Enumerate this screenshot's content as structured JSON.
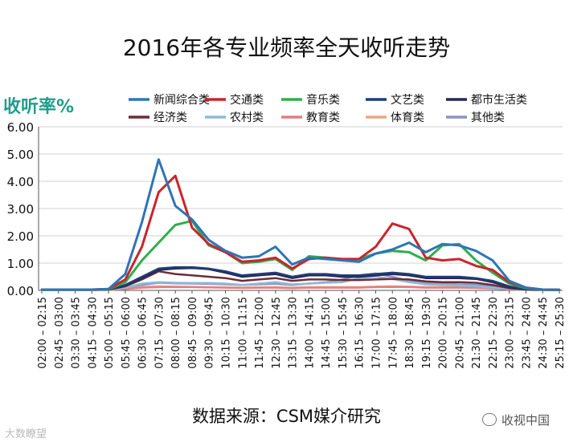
{
  "page": {
    "title": "2016年各专业频率全天收听走势",
    "source": "数据来源：CSM媒介研究",
    "watermark_left": "大数瞭望",
    "watermark_right": "收视中国"
  },
  "chart_data": {
    "type": "line",
    "ylabel": "收听率%",
    "ylim": [
      0,
      6
    ],
    "yticks": [
      "0.00",
      "1.00",
      "2.00",
      "3.00",
      "4.00",
      "5.00",
      "6.00"
    ],
    "x": [
      "02:00 – 02:15",
      "02:45 – 03:00",
      "03:30 – 03:45",
      "04:15 – 04:30",
      "05:00 – 05:15",
      "05:45 – 06:00",
      "06:30 – 06:45",
      "07:15 – 07:30",
      "08:00 – 08:15",
      "08:45 – 09:00",
      "09:30 – 09:45",
      "10:15 – 10:30",
      "11:00 – 11:15",
      "11:45 – 12:00",
      "12:30 – 12:45",
      "13:15 – 13:30",
      "14:00 – 14:15",
      "14:45 – 15:00",
      "15:30 – 15:45",
      "16:15 – 16:30",
      "17:00 – 17:15",
      "17:45 – 18:00",
      "18:30 – 18:45",
      "19:15 – 19:30",
      "20:00 – 20:15",
      "20:45 – 21:00",
      "21:30 – 21:45",
      "22:15 – 22:30",
      "23:00 – 23:15",
      "23:45 – 24:00",
      "24:30 – 24:45",
      "25:15 – 25:30"
    ],
    "legend_position": "top",
    "series": [
      {
        "name": "新闻综合类",
        "color": "#2e75b6",
        "width": 3,
        "values": [
          0.03,
          0.03,
          0.03,
          0.03,
          0.05,
          0.6,
          2.5,
          4.8,
          3.1,
          2.6,
          1.85,
          1.45,
          1.2,
          1.25,
          1.6,
          0.95,
          1.2,
          1.15,
          1.1,
          1.05,
          1.35,
          1.5,
          1.75,
          1.4,
          1.7,
          1.65,
          1.45,
          1.1,
          0.35,
          0.1,
          0.03,
          0.02
        ]
      },
      {
        "name": "交通类",
        "color": "#c9252c",
        "width": 3,
        "values": [
          0.03,
          0.03,
          0.03,
          0.03,
          0.05,
          0.4,
          1.6,
          3.6,
          4.2,
          2.3,
          1.7,
          1.4,
          1.05,
          1.1,
          1.2,
          0.8,
          1.15,
          1.2,
          1.15,
          1.15,
          1.6,
          2.45,
          2.25,
          1.2,
          1.1,
          1.15,
          0.9,
          0.75,
          0.3,
          0.1,
          0.03,
          0.02
        ]
      },
      {
        "name": "音乐类",
        "color": "#2fae4e",
        "width": 3,
        "values": [
          0.02,
          0.02,
          0.02,
          0.02,
          0.04,
          0.3,
          1.1,
          1.75,
          2.4,
          2.55,
          1.65,
          1.4,
          1.0,
          1.05,
          1.15,
          0.75,
          1.25,
          1.2,
          1.1,
          1.15,
          1.35,
          1.45,
          1.4,
          1.1,
          1.65,
          1.7,
          1.1,
          0.65,
          0.25,
          0.08,
          0.02,
          0.02
        ]
      },
      {
        "name": "文艺类",
        "color": "#1f3e78",
        "width": 2.5,
        "values": [
          0.02,
          0.02,
          0.02,
          0.02,
          0.03,
          0.2,
          0.5,
          0.8,
          0.85,
          0.85,
          0.8,
          0.7,
          0.55,
          0.6,
          0.65,
          0.5,
          0.6,
          0.6,
          0.55,
          0.55,
          0.6,
          0.65,
          0.6,
          0.5,
          0.5,
          0.5,
          0.45,
          0.35,
          0.15,
          0.05,
          0.02,
          0.02
        ]
      },
      {
        "name": "都市生活类",
        "color": "#27274f",
        "width": 2.5,
        "values": [
          0.02,
          0.02,
          0.02,
          0.02,
          0.03,
          0.18,
          0.45,
          0.75,
          0.8,
          0.82,
          0.78,
          0.65,
          0.5,
          0.55,
          0.6,
          0.45,
          0.55,
          0.55,
          0.5,
          0.5,
          0.55,
          0.6,
          0.55,
          0.45,
          0.45,
          0.45,
          0.42,
          0.3,
          0.12,
          0.04,
          0.02,
          0.02
        ]
      },
      {
        "name": "经济类",
        "color": "#6b2d3a",
        "width": 2.5,
        "values": [
          0.02,
          0.02,
          0.02,
          0.02,
          0.03,
          0.15,
          0.4,
          0.7,
          0.6,
          0.55,
          0.5,
          0.45,
          0.35,
          0.4,
          0.45,
          0.35,
          0.4,
          0.4,
          0.38,
          0.38,
          0.4,
          0.42,
          0.4,
          0.33,
          0.3,
          0.3,
          0.28,
          0.2,
          0.08,
          0.03,
          0.02,
          0.02
        ]
      },
      {
        "name": "农村类",
        "color": "#8fb9d8",
        "width": 2.5,
        "values": [
          0.02,
          0.02,
          0.02,
          0.02,
          0.03,
          0.1,
          0.25,
          0.3,
          0.28,
          0.27,
          0.27,
          0.25,
          0.2,
          0.25,
          0.3,
          0.22,
          0.25,
          0.28,
          0.3,
          0.45,
          0.5,
          0.42,
          0.3,
          0.22,
          0.2,
          0.18,
          0.15,
          0.1,
          0.05,
          0.02,
          0.02,
          0.02
        ]
      },
      {
        "name": "教育类",
        "color": "#e07f86",
        "width": 2.5,
        "values": [
          0.01,
          0.01,
          0.01,
          0.01,
          0.02,
          0.05,
          0.1,
          0.12,
          0.12,
          0.12,
          0.11,
          0.1,
          0.09,
          0.1,
          0.1,
          0.08,
          0.1,
          0.1,
          0.1,
          0.1,
          0.12,
          0.13,
          0.12,
          0.1,
          0.1,
          0.1,
          0.09,
          0.07,
          0.04,
          0.02,
          0.01,
          0.01
        ]
      },
      {
        "name": "体育类",
        "color": "#efa583",
        "width": 2.5,
        "values": [
          0.01,
          0.01,
          0.01,
          0.01,
          0.02,
          0.06,
          0.12,
          0.15,
          0.14,
          0.13,
          0.12,
          0.11,
          0.1,
          0.11,
          0.12,
          0.1,
          0.12,
          0.12,
          0.12,
          0.12,
          0.14,
          0.15,
          0.14,
          0.12,
          0.12,
          0.12,
          0.11,
          0.08,
          0.04,
          0.02,
          0.01,
          0.01
        ]
      },
      {
        "name": "其他类",
        "color": "#8a94c2",
        "width": 2.5,
        "values": [
          0.02,
          0.02,
          0.02,
          0.02,
          0.03,
          0.1,
          0.2,
          0.28,
          0.26,
          0.25,
          0.24,
          0.22,
          0.2,
          0.22,
          0.24,
          0.2,
          0.25,
          0.3,
          0.4,
          0.55,
          0.62,
          0.5,
          0.35,
          0.28,
          0.25,
          0.22,
          0.2,
          0.14,
          0.06,
          0.03,
          0.02,
          0.02
        ]
      }
    ]
  }
}
